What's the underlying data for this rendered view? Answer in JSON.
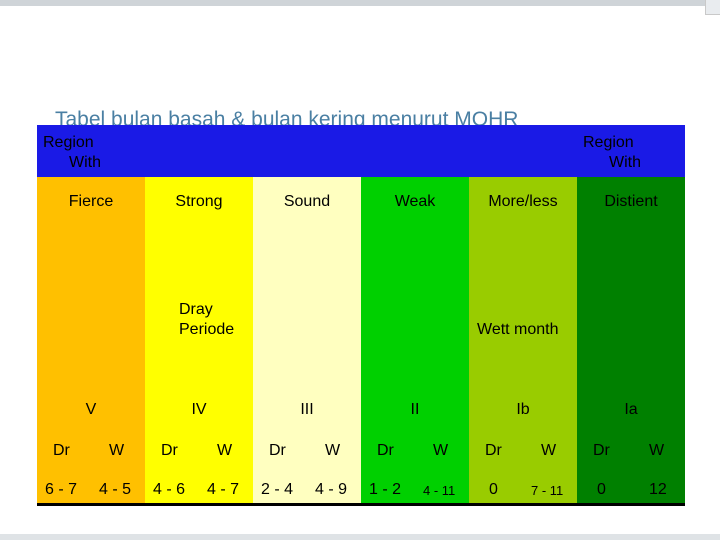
{
  "title": "Tabel bulan basah & bulan kering menurut MOHR",
  "header": {
    "left_line1": "Region",
    "left_line2": "With",
    "right_line1": "Region",
    "right_line2": "With"
  },
  "colors": {
    "header": "#1a1ae6",
    "columns": [
      "#ffc000",
      "#ffff00",
      "#ffffc0",
      "#00d000",
      "#99cc00",
      "#008000"
    ]
  },
  "columns": [
    {
      "name": "Fierce",
      "class": "V",
      "dr_label": "Dr",
      "w_label": "W",
      "dr_value": "6 - 7",
      "w_value": "4 - 5"
    },
    {
      "name": "Strong",
      "class": "IV",
      "dr_label": "Dr",
      "w_label": "W",
      "dr_value": "4 - 6",
      "w_value": "4 - 7"
    },
    {
      "name": "Sound",
      "class": "III",
      "dr_label": "Dr",
      "w_label": "W",
      "dr_value": "2 - 4",
      "w_value": "4 - 9"
    },
    {
      "name": "Weak",
      "class": "II",
      "dr_label": "Dr",
      "w_label": "W",
      "dr_value": "1 - 2",
      "w_value": "4 - 11"
    },
    {
      "name": "More/less",
      "class": "Ib",
      "dr_label": "Dr",
      "w_label": "W",
      "dr_value": "0",
      "w_value": "7 - 11"
    },
    {
      "name": "Distient",
      "class": "Ia",
      "dr_label": "Dr",
      "w_label": "W",
      "dr_value": "0",
      "w_value": "12"
    }
  ],
  "middle": {
    "dry_line1": "Dray",
    "dry_line2": "Periode",
    "wet": "Wett month"
  }
}
